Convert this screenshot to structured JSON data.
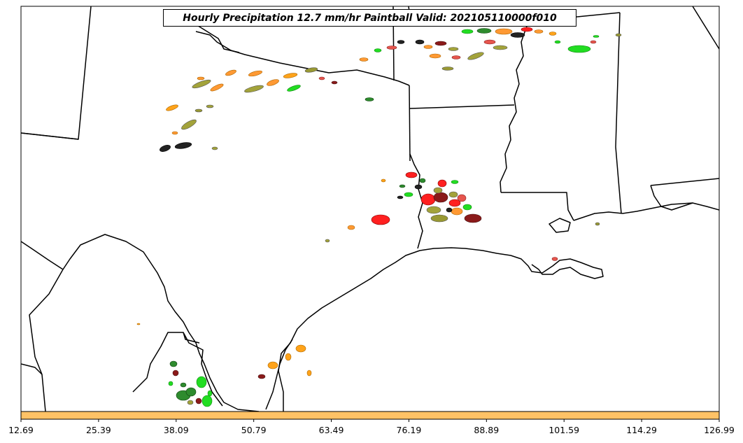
{
  "chart_data": {
    "type": "heatmap",
    "title": "Hourly Precipitation 12.7 mm/hr Paintball Valid: 202105110000f010",
    "xlabel": "",
    "ylabel": "",
    "colorbar": {
      "color": "#ffc266",
      "ticks": [
        "12.69",
        "25.39",
        "38.09",
        "50.79",
        "63.49",
        "76.19",
        "88.89",
        "101.59",
        "114.29",
        "126.99"
      ],
      "range": [
        12.69,
        126.99
      ]
    },
    "member_colors": [
      "#ff9933",
      "#ff2020",
      "#222222",
      "#22dd22",
      "#a3a33a",
      "#8b1a1a",
      "#2e8b2e",
      "#ffa31a",
      "#e6554d",
      "#999933"
    ]
  }
}
